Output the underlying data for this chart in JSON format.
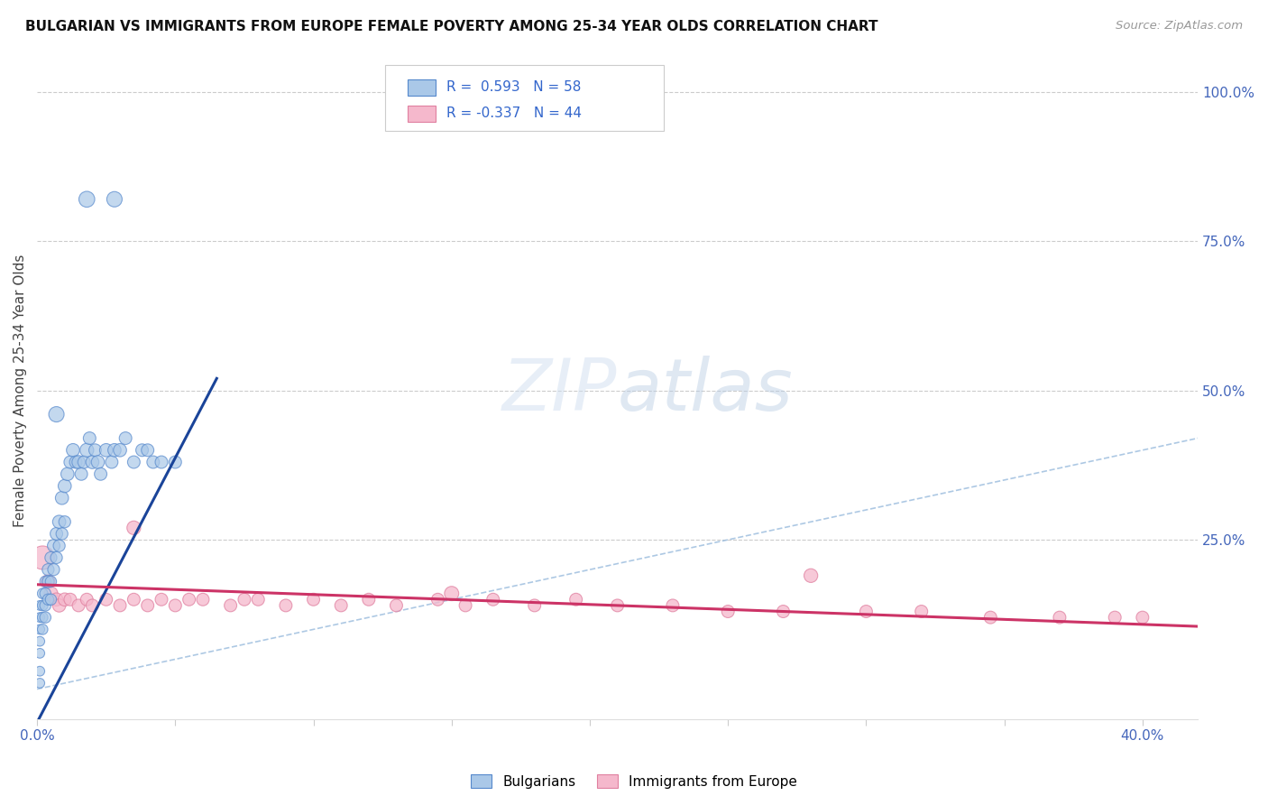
{
  "title": "BULGARIAN VS IMMIGRANTS FROM EUROPE FEMALE POVERTY AMONG 25-34 YEAR OLDS CORRELATION CHART",
  "source": "Source: ZipAtlas.com",
  "ylabel": "Female Poverty Among 25-34 Year Olds",
  "xlim": [
    0.0,
    0.42
  ],
  "ylim": [
    -0.05,
    1.05
  ],
  "blue_R": 0.593,
  "blue_N": 58,
  "pink_R": -0.337,
  "pink_N": 44,
  "blue_color": "#aac8e8",
  "pink_color": "#f5b8cc",
  "blue_edge_color": "#5588cc",
  "pink_edge_color": "#e080a0",
  "blue_line_color": "#1a4499",
  "pink_line_color": "#cc3366",
  "diag_color": "#99bbdd",
  "grid_color": "#cccccc",
  "bg_color": "#ffffff",
  "tick_color": "#4466bb",
  "title_color": "#111111",
  "source_color": "#999999",
  "legend_text_color": "#111111",
  "legend_val_color": "#3366cc",
  "blue_x": [
    0.001,
    0.001,
    0.001,
    0.001,
    0.001,
    0.002,
    0.002,
    0.002,
    0.002,
    0.003,
    0.003,
    0.003,
    0.003,
    0.004,
    0.004,
    0.004,
    0.005,
    0.005,
    0.005,
    0.006,
    0.006,
    0.007,
    0.007,
    0.008,
    0.008,
    0.009,
    0.009,
    0.01,
    0.01,
    0.011,
    0.012,
    0.013,
    0.014,
    0.015,
    0.016,
    0.017,
    0.018,
    0.019,
    0.02,
    0.021,
    0.022,
    0.023,
    0.025,
    0.027,
    0.028,
    0.03,
    0.032,
    0.035,
    0.038,
    0.04,
    0.042,
    0.045,
    0.05,
    0.018,
    0.028,
    0.007,
    0.001,
    0.001
  ],
  "blue_y": [
    0.14,
    0.12,
    0.1,
    0.08,
    0.06,
    0.16,
    0.14,
    0.12,
    0.1,
    0.18,
    0.16,
    0.14,
    0.12,
    0.2,
    0.18,
    0.15,
    0.22,
    0.18,
    0.15,
    0.24,
    0.2,
    0.26,
    0.22,
    0.28,
    0.24,
    0.32,
    0.26,
    0.34,
    0.28,
    0.36,
    0.38,
    0.4,
    0.38,
    0.38,
    0.36,
    0.38,
    0.4,
    0.42,
    0.38,
    0.4,
    0.38,
    0.36,
    0.4,
    0.38,
    0.4,
    0.4,
    0.42,
    0.38,
    0.4,
    0.4,
    0.38,
    0.38,
    0.38,
    0.82,
    0.82,
    0.46,
    0.03,
    0.01
  ],
  "blue_sizes": [
    60,
    60,
    60,
    60,
    60,
    70,
    70,
    70,
    70,
    80,
    80,
    80,
    80,
    90,
    90,
    80,
    90,
    80,
    80,
    100,
    90,
    100,
    90,
    110,
    90,
    110,
    90,
    110,
    90,
    110,
    100,
    110,
    100,
    110,
    100,
    100,
    120,
    100,
    110,
    100,
    110,
    100,
    110,
    100,
    110,
    110,
    100,
    100,
    100,
    100,
    100,
    100,
    100,
    160,
    150,
    150,
    60,
    60
  ],
  "pink_x": [
    0.002,
    0.004,
    0.005,
    0.007,
    0.008,
    0.01,
    0.012,
    0.015,
    0.018,
    0.02,
    0.025,
    0.03,
    0.035,
    0.04,
    0.045,
    0.05,
    0.055,
    0.06,
    0.07,
    0.075,
    0.08,
    0.09,
    0.1,
    0.11,
    0.12,
    0.13,
    0.145,
    0.155,
    0.165,
    0.18,
    0.195,
    0.21,
    0.23,
    0.25,
    0.27,
    0.3,
    0.32,
    0.345,
    0.37,
    0.39,
    0.4,
    0.035,
    0.15,
    0.28
  ],
  "pink_y": [
    0.22,
    0.18,
    0.16,
    0.15,
    0.14,
    0.15,
    0.15,
    0.14,
    0.15,
    0.14,
    0.15,
    0.14,
    0.15,
    0.14,
    0.15,
    0.14,
    0.15,
    0.15,
    0.14,
    0.15,
    0.15,
    0.14,
    0.15,
    0.14,
    0.15,
    0.14,
    0.15,
    0.14,
    0.15,
    0.14,
    0.15,
    0.14,
    0.14,
    0.13,
    0.13,
    0.13,
    0.13,
    0.12,
    0.12,
    0.12,
    0.12,
    0.27,
    0.16,
    0.19
  ],
  "pink_sizes": [
    350,
    120,
    120,
    110,
    110,
    110,
    100,
    100,
    100,
    100,
    100,
    100,
    100,
    100,
    100,
    100,
    100,
    100,
    100,
    100,
    100,
    100,
    100,
    100,
    100,
    100,
    100,
    100,
    100,
    100,
    100,
    100,
    100,
    100,
    100,
    100,
    100,
    100,
    100,
    100,
    100,
    120,
    130,
    120
  ],
  "blue_line_x": [
    -0.005,
    0.065
  ],
  "blue_line_y": [
    -0.1,
    0.52
  ],
  "pink_line_x": [
    0.0,
    0.42
  ],
  "pink_line_y": [
    0.175,
    0.105
  ],
  "diag_line_x": [
    0.0,
    0.42
  ],
  "diag_line_y": [
    0.0,
    0.42
  ]
}
